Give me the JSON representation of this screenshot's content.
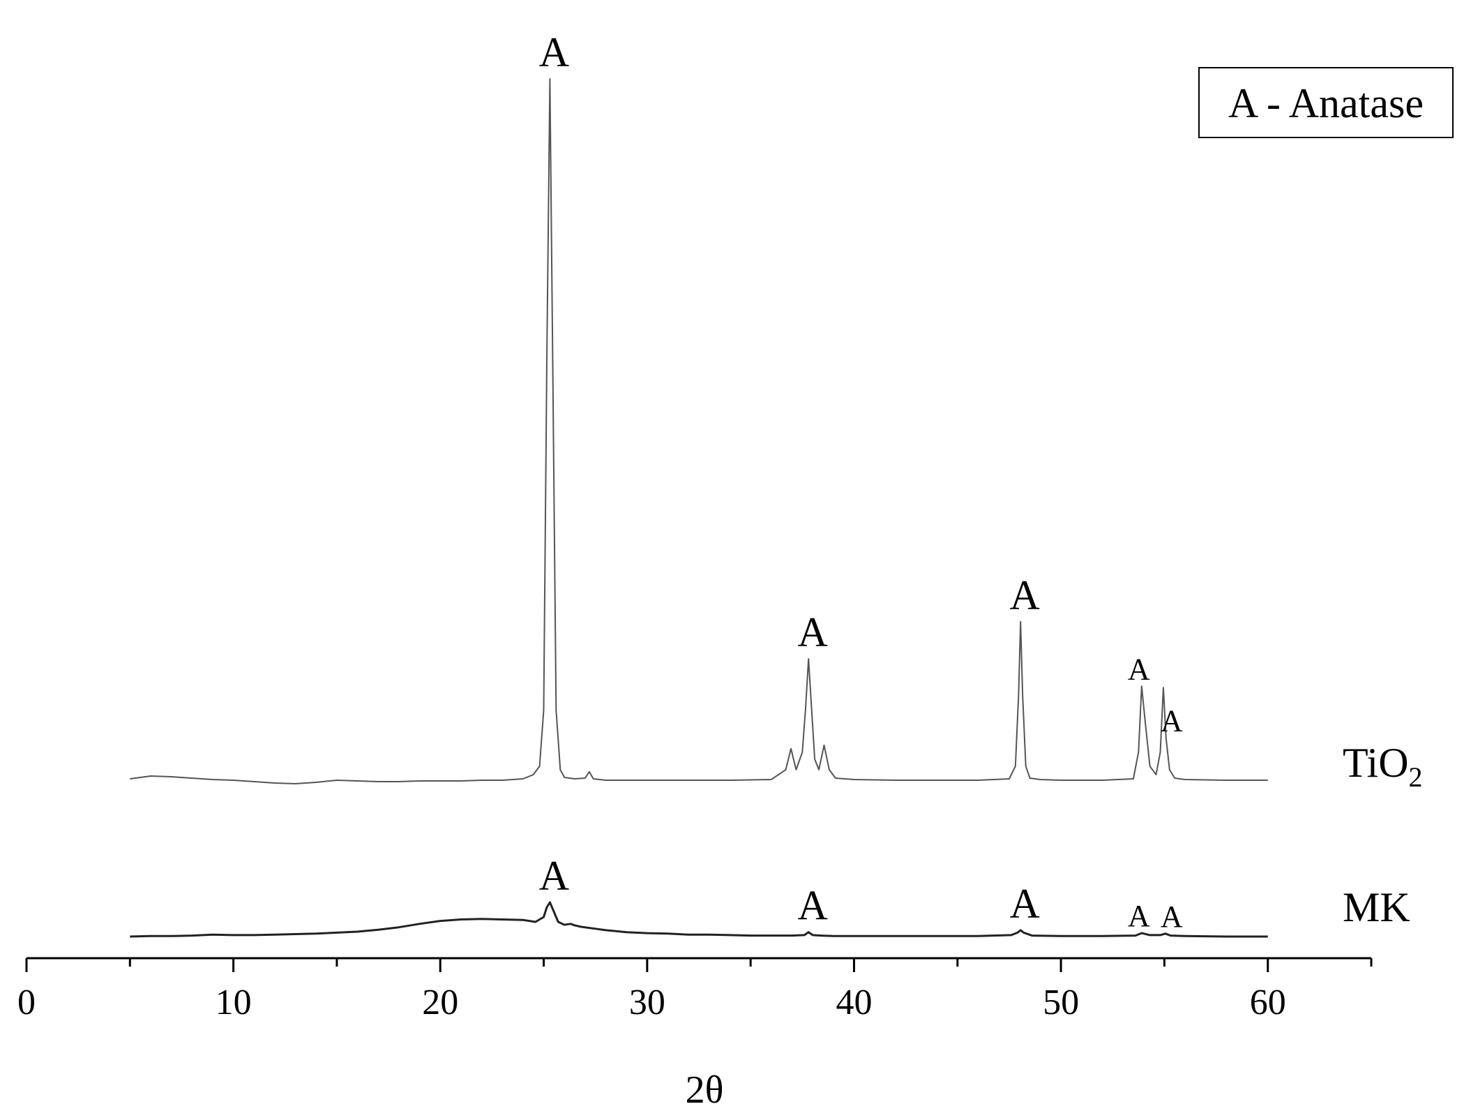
{
  "chart_data": {
    "type": "line",
    "title": "",
    "xlabel": "2θ",
    "ylabel": "",
    "xlim": [
      0,
      65
    ],
    "x_ticks": [
      0,
      10,
      20,
      30,
      40,
      50,
      60
    ],
    "x_minor_ticks": [
      5,
      15,
      25,
      35,
      45,
      55,
      65
    ],
    "legend_box": "A - Anatase",
    "legend_position": "top-right",
    "grid": false,
    "series": [
      {
        "name": "TiO2",
        "label_main": "TiO",
        "label_sub": "2",
        "color": "#555555",
        "baseline": 0,
        "x": [
          5,
          6,
          7,
          8,
          9,
          10,
          11,
          12,
          13,
          14,
          15,
          16,
          17,
          18,
          19,
          20,
          21,
          22,
          23,
          24,
          24.5,
          24.8,
          25.0,
          25.15,
          25.3,
          25.45,
          25.6,
          25.8,
          26.0,
          26.5,
          27.0,
          27.2,
          27.4,
          28,
          30,
          32,
          34,
          36,
          36.7,
          36.95,
          37.2,
          37.5,
          37.65,
          37.8,
          37.95,
          38.1,
          38.3,
          38.55,
          38.8,
          39.1,
          40,
          42,
          44,
          46,
          47.5,
          47.8,
          47.95,
          48.05,
          48.15,
          48.3,
          48.5,
          49,
          50,
          52,
          53.5,
          53.75,
          53.9,
          54.05,
          54.3,
          54.6,
          54.8,
          54.95,
          55.08,
          55.25,
          55.5,
          56,
          58,
          60
        ],
        "y": [
          0.2,
          0.6,
          0.5,
          0.3,
          0.1,
          0.0,
          -0.2,
          -0.4,
          -0.5,
          -0.3,
          0.0,
          -0.1,
          -0.2,
          -0.2,
          -0.1,
          -0.1,
          -0.1,
          0,
          0,
          0.2,
          0.8,
          2.0,
          10,
          60,
          100,
          55,
          10,
          1.5,
          0.4,
          0.2,
          0.3,
          1.2,
          0.2,
          0,
          0,
          0,
          0,
          0.1,
          1.5,
          4.5,
          1.5,
          4,
          10,
          17.3,
          10,
          3,
          1.5,
          5,
          1.5,
          0.3,
          0.1,
          0,
          0,
          0,
          0.2,
          2,
          12,
          22.6,
          12,
          2,
          0.3,
          0.1,
          0,
          0,
          0.2,
          4,
          13.4,
          9,
          2,
          0.8,
          4,
          13.2,
          6,
          1.5,
          0.3,
          0.1,
          0,
          0
        ]
      },
      {
        "name": "MK",
        "label": "MK",
        "color": "#222222",
        "baseline": 0,
        "x": [
          5,
          6,
          7,
          8,
          9,
          10,
          11,
          12,
          13,
          14,
          15,
          16,
          17,
          18,
          19,
          20,
          21,
          22,
          23,
          24,
          24.6,
          25.0,
          25.15,
          25.3,
          25.45,
          25.7,
          26.0,
          26.3,
          26.5,
          26.8,
          27.5,
          28,
          29,
          30,
          31,
          32,
          33,
          34,
          35,
          36,
          37,
          37.6,
          37.8,
          38.0,
          38.4,
          39,
          40,
          42,
          44,
          46,
          47.6,
          47.9,
          48.05,
          48.2,
          48.6,
          50,
          52,
          53.6,
          53.9,
          54.3,
          54.8,
          55.05,
          55.3,
          56,
          58,
          60
        ],
        "y": [
          0.0,
          0.1,
          0.1,
          0.2,
          0.4,
          0.3,
          0.3,
          0.4,
          0.5,
          0.6,
          0.8,
          1.0,
          1.4,
          1.9,
          2.6,
          3.2,
          3.5,
          3.6,
          3.5,
          3.4,
          3.0,
          4.0,
          6.0,
          7.0,
          5.5,
          3.0,
          2.4,
          2.6,
          2.3,
          2.0,
          1.6,
          1.3,
          0.9,
          0.7,
          0.6,
          0.4,
          0.4,
          0.3,
          0.2,
          0.2,
          0.2,
          0.3,
          0.9,
          0.3,
          0.2,
          0.1,
          0.1,
          0.1,
          0.1,
          0.1,
          0.3,
          0.8,
          1.3,
          0.8,
          0.2,
          0.1,
          0.1,
          0.2,
          0.7,
          0.3,
          0.3,
          0.6,
          0.2,
          0.1,
          0,
          0
        ]
      }
    ],
    "annotations": [
      {
        "text": "A",
        "x": 25.3,
        "series": "TiO2",
        "size": "large"
      },
      {
        "text": "A",
        "x": 37.8,
        "series": "TiO2",
        "size": "large"
      },
      {
        "text": "A",
        "x": 48.05,
        "series": "TiO2",
        "size": "large"
      },
      {
        "text": "A",
        "x": 53.9,
        "series": "TiO2",
        "size": "small"
      },
      {
        "text": "A",
        "x": 55.08,
        "series": "TiO2",
        "size": "small"
      },
      {
        "text": "A",
        "x": 25.3,
        "series": "MK",
        "size": "large"
      },
      {
        "text": "A",
        "x": 37.8,
        "series": "MK",
        "size": "large"
      },
      {
        "text": "A",
        "x": 48.05,
        "series": "MK",
        "size": "large"
      },
      {
        "text": "A",
        "x": 53.9,
        "series": "MK",
        "size": "small"
      },
      {
        "text": "A",
        "x": 55.08,
        "series": "MK",
        "size": "small"
      }
    ]
  }
}
